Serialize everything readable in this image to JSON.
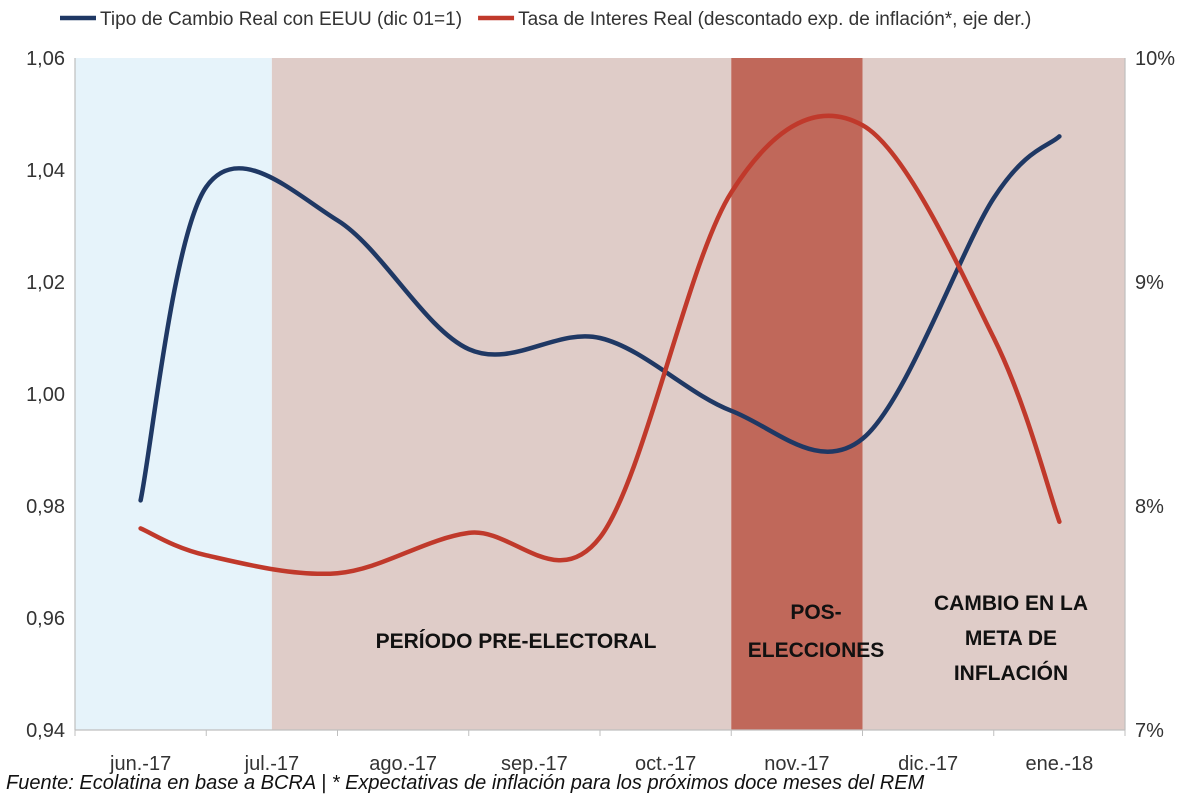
{
  "chart_data": {
    "type": "line",
    "title": "",
    "categories": [
      "jun.-17",
      "jul.-17",
      "ago.-17",
      "sep.-17",
      "oct.-17",
      "nov.-17",
      "dic.-17",
      "ene.-18"
    ],
    "x": [
      0,
      0.5,
      1.5,
      2.5,
      3.5,
      4.5,
      5.5,
      6.5,
      7
    ],
    "y_left": {
      "ticks": [
        "0,94",
        "0,96",
        "0,98",
        "1,00",
        "1,02",
        "1,04",
        "1,06"
      ],
      "ylim": [
        0.94,
        1.06
      ]
    },
    "y_right": {
      "ticks": [
        "7%",
        "8%",
        "9%",
        "10%"
      ],
      "ylim": [
        7,
        10
      ]
    },
    "series": [
      {
        "name": "Tipo de Cambio Real con EEUU (dic 01=1)",
        "axis": "left",
        "color": "#1F3864",
        "y": [
          0.981,
          1.037,
          1.031,
          1.008,
          1.01,
          0.997,
          0.992,
          1.035,
          1.046
        ]
      },
      {
        "name": "Tasa de Interes Real (descontado exp. de inflación*, eje der.)",
        "axis": "right",
        "color": "#C0392B",
        "y": [
          7.9,
          7.78,
          7.7,
          7.88,
          7.86,
          9.4,
          9.7,
          8.75,
          7.93
        ]
      }
    ],
    "legend": "top",
    "grid": false,
    "bands": [
      {
        "from": -0.5,
        "to": 1.0,
        "color": "#E6F3FA",
        "label": ""
      },
      {
        "from": 1.0,
        "to": 4.5,
        "color": "#DFCCC8",
        "label": "PERÍODO PRE-ELECTORAL"
      },
      {
        "from": 4.5,
        "to": 5.5,
        "color": "#C0685A",
        "label": "POS-ELECCIONES"
      },
      {
        "from": 5.5,
        "to": 7.5,
        "color": "#DFCCC8",
        "label": "CAMBIO EN LA META DE INFLACIÓN"
      }
    ]
  },
  "annotations": {
    "pre_electoral": "PERÍODO PRE-ELECTORAL",
    "pos_line1": "POS-",
    "pos_line2": "ELECCIONES",
    "cambio_line1": "CAMBIO EN LA",
    "cambio_line2": "META DE",
    "cambio_line3": "INFLACIÓN"
  },
  "source_note": "Fuente: Ecolatina en base a BCRA | * Expectativas de inflación para los próximos doce meses del REM"
}
